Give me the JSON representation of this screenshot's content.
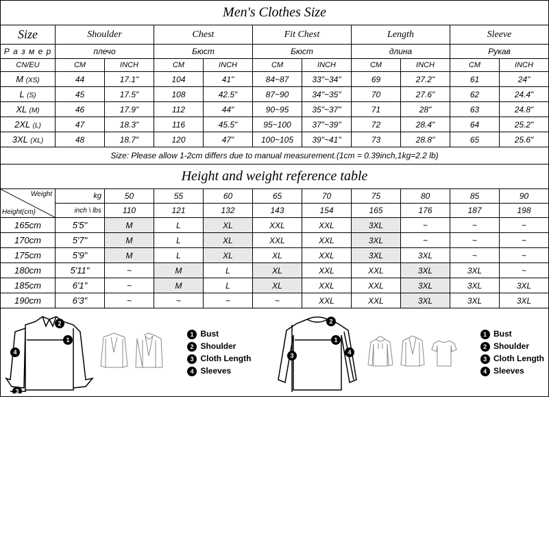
{
  "table1": {
    "title": "Men's Clothes Size",
    "size_label": "Size",
    "size_sub": "Р а з м е р",
    "groups": [
      {
        "en": "Shoulder",
        "ru": "плечо"
      },
      {
        "en": "Chest",
        "ru": "Бюст"
      },
      {
        "en": "Fit Chest",
        "ru": "Бюст"
      },
      {
        "en": "Length",
        "ru": "длина"
      },
      {
        "en": "Sleeve",
        "ru": "Рукав"
      }
    ],
    "unit_row_label": "CN/EU",
    "units": [
      "CM",
      "INCH",
      "CM",
      "INCH",
      "CM",
      "INCH",
      "CM",
      "INCH",
      "CM",
      "INCH"
    ],
    "rows": [
      {
        "label": "M",
        "paren": "(XS)",
        "vals": [
          "44",
          "17.1\"",
          "104",
          "41\"",
          "84~87",
          "33\"~34\"",
          "69",
          "27.2\"",
          "61",
          "24\""
        ]
      },
      {
        "label": "L",
        "paren": "(S)",
        "vals": [
          "45",
          "17.5\"",
          "108",
          "42.5\"",
          "87~90",
          "34\"~35\"",
          "70",
          "27.6\"",
          "62",
          "24.4\""
        ]
      },
      {
        "label": "XL",
        "paren": "(M)",
        "vals": [
          "46",
          "17.9\"",
          "112",
          "44\"",
          "90~95",
          "35\"~37\"",
          "71",
          "28\"",
          "63",
          "24.8\""
        ]
      },
      {
        "label": "2XL",
        "paren": "(L)",
        "vals": [
          "47",
          "18.3\"",
          "116",
          "45.5\"",
          "95~100",
          "37\"~39\"",
          "72",
          "28.4\"",
          "64",
          "25.2\""
        ]
      },
      {
        "label": "3XL",
        "paren": "(XL)",
        "vals": [
          "48",
          "18.7\"",
          "120",
          "47\"",
          "100~105",
          "39\"~41\"",
          "73",
          "28.8\"",
          "65",
          "25.6\""
        ]
      }
    ],
    "note": "Size: Please allow 1-2cm differs due to manual measurement.(1cm = 0.39inch,1kg=2.2 lb)"
  },
  "table2": {
    "title": "Height and weight reference table",
    "diag_weight": "Weight",
    "diag_height": "Height(cm)",
    "kg_label": "kg",
    "inchlbs_label": "inch \\ lbs",
    "weights_kg": [
      "50",
      "55",
      "60",
      "65",
      "70",
      "75",
      "80",
      "85",
      "90"
    ],
    "weights_lbs": [
      "110",
      "121",
      "132",
      "143",
      "154",
      "165",
      "176",
      "187",
      "198"
    ],
    "rows": [
      {
        "h": "165cm",
        "ft": "5'5\"",
        "cells": [
          {
            "v": "M",
            "s": 1
          },
          {
            "v": "L",
            "s": 0
          },
          {
            "v": "XL",
            "s": 1
          },
          {
            "v": "XXL",
            "s": 0
          },
          {
            "v": "XXL",
            "s": 0
          },
          {
            "v": "3XL",
            "s": 1
          },
          {
            "v": "~",
            "s": 0
          },
          {
            "v": "~",
            "s": 0
          },
          {
            "v": "~",
            "s": 0
          }
        ]
      },
      {
        "h": "170cm",
        "ft": "5'7\"",
        "cells": [
          {
            "v": "M",
            "s": 1
          },
          {
            "v": "L",
            "s": 0
          },
          {
            "v": "XL",
            "s": 1
          },
          {
            "v": "XXL",
            "s": 0
          },
          {
            "v": "XXL",
            "s": 0
          },
          {
            "v": "3XL",
            "s": 1
          },
          {
            "v": "~",
            "s": 0
          },
          {
            "v": "~",
            "s": 0
          },
          {
            "v": "~",
            "s": 0
          }
        ]
      },
      {
        "h": "175cm",
        "ft": "5'9\"",
        "cells": [
          {
            "v": "M",
            "s": 1
          },
          {
            "v": "L",
            "s": 0
          },
          {
            "v": "XL",
            "s": 1
          },
          {
            "v": "XL",
            "s": 0
          },
          {
            "v": "XXL",
            "s": 0
          },
          {
            "v": "3XL",
            "s": 1
          },
          {
            "v": "3XL",
            "s": 0
          },
          {
            "v": "~",
            "s": 0
          },
          {
            "v": "~",
            "s": 0
          }
        ]
      },
      {
        "h": "180cm",
        "ft": "5'11\"",
        "cells": [
          {
            "v": "~",
            "s": 0
          },
          {
            "v": "M",
            "s": 1
          },
          {
            "v": "L",
            "s": 0
          },
          {
            "v": "XL",
            "s": 1
          },
          {
            "v": "XXL",
            "s": 0
          },
          {
            "v": "XXL",
            "s": 0
          },
          {
            "v": "3XL",
            "s": 1
          },
          {
            "v": "3XL",
            "s": 0
          },
          {
            "v": "~",
            "s": 0
          }
        ]
      },
      {
        "h": "185cm",
        "ft": "6'1\"",
        "cells": [
          {
            "v": "~",
            "s": 0
          },
          {
            "v": "M",
            "s": 1
          },
          {
            "v": "L",
            "s": 0
          },
          {
            "v": "XL",
            "s": 1
          },
          {
            "v": "XXL",
            "s": 0
          },
          {
            "v": "XXL",
            "s": 0
          },
          {
            "v": "3XL",
            "s": 1
          },
          {
            "v": "3XL",
            "s": 0
          },
          {
            "v": "3XL",
            "s": 0
          }
        ]
      },
      {
        "h": "190cm",
        "ft": "6'3\"",
        "cells": [
          {
            "v": "~",
            "s": 0
          },
          {
            "v": "~",
            "s": 0
          },
          {
            "v": "~",
            "s": 0
          },
          {
            "v": "~",
            "s": 0
          },
          {
            "v": "XXL",
            "s": 0
          },
          {
            "v": "XXL",
            "s": 0
          },
          {
            "v": "3XL",
            "s": 1
          },
          {
            "v": "3XL",
            "s": 0
          },
          {
            "v": "3XL",
            "s": 0
          }
        ]
      }
    ]
  },
  "legend": {
    "items": [
      "Bust",
      "Shoulder",
      "Cloth Length",
      "Sleeves"
    ]
  },
  "colors": {
    "border": "#000000",
    "shaded_bg": "#e8e8e8",
    "bg": "#ffffff",
    "text": "#000000"
  }
}
